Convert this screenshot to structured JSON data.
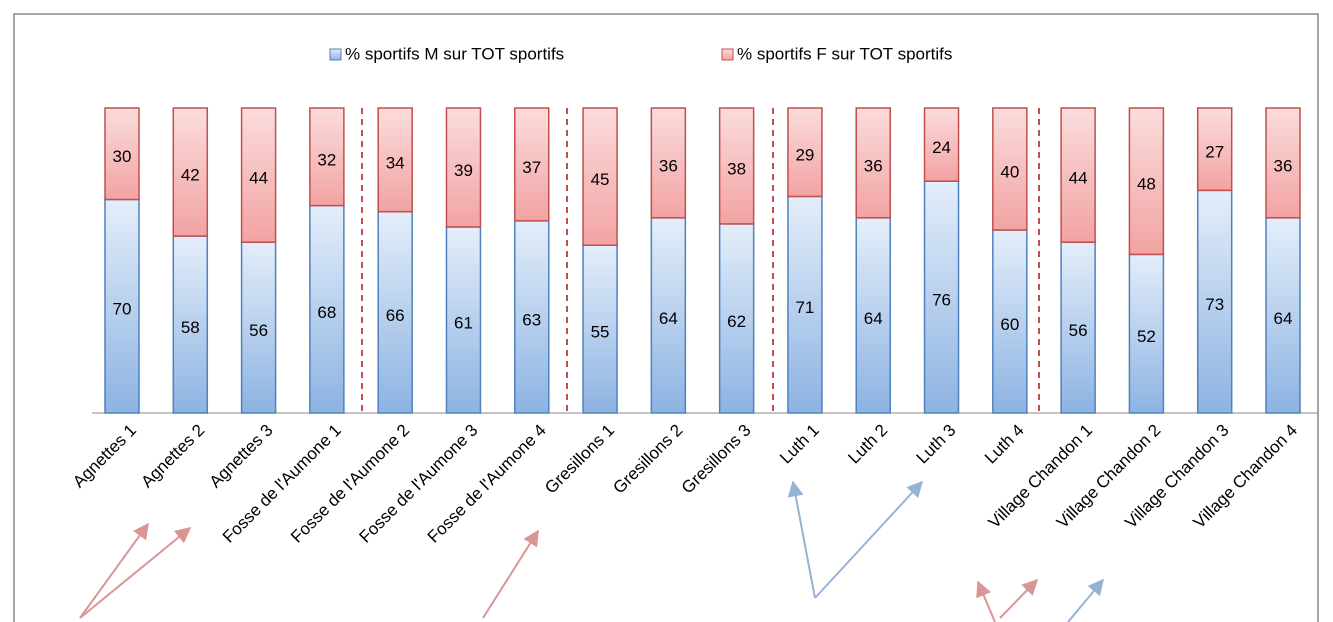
{
  "chart_data": {
    "type": "stacked_bar",
    "categories": [
      "Agnettes 1",
      "Agnettes 2",
      "Agnettes 3",
      "Fosse de l'Aumone 1",
      "Fosse de l'Aumone 2",
      "Fosse de l'Aumone 3",
      "Fosse de l'Aumone 4",
      "Gresillons 1",
      "Gresillons 2",
      "Gresillons 3",
      "Luth 1",
      "Luth 2",
      "Luth 3",
      "Luth 4",
      "Village Chandon 1",
      "Village Chandon 2",
      "Village Chandon 3",
      "Village Chandon 4"
    ],
    "series": [
      {
        "name": "% sportifs M sur TOT sportifs",
        "color": "#4f81bd",
        "values": [
          70,
          58,
          56,
          68,
          66,
          61,
          63,
          55,
          64,
          62,
          71,
          64,
          76,
          60,
          56,
          52,
          73,
          64
        ]
      },
      {
        "name": "% sportifs F sur TOT sportifs",
        "color": "#c0504d",
        "values": [
          30,
          42,
          44,
          32,
          34,
          39,
          37,
          45,
          36,
          38,
          29,
          36,
          24,
          40,
          44,
          48,
          27,
          36
        ]
      }
    ],
    "ylim": [
      0,
      100
    ],
    "legend": "top"
  }
}
